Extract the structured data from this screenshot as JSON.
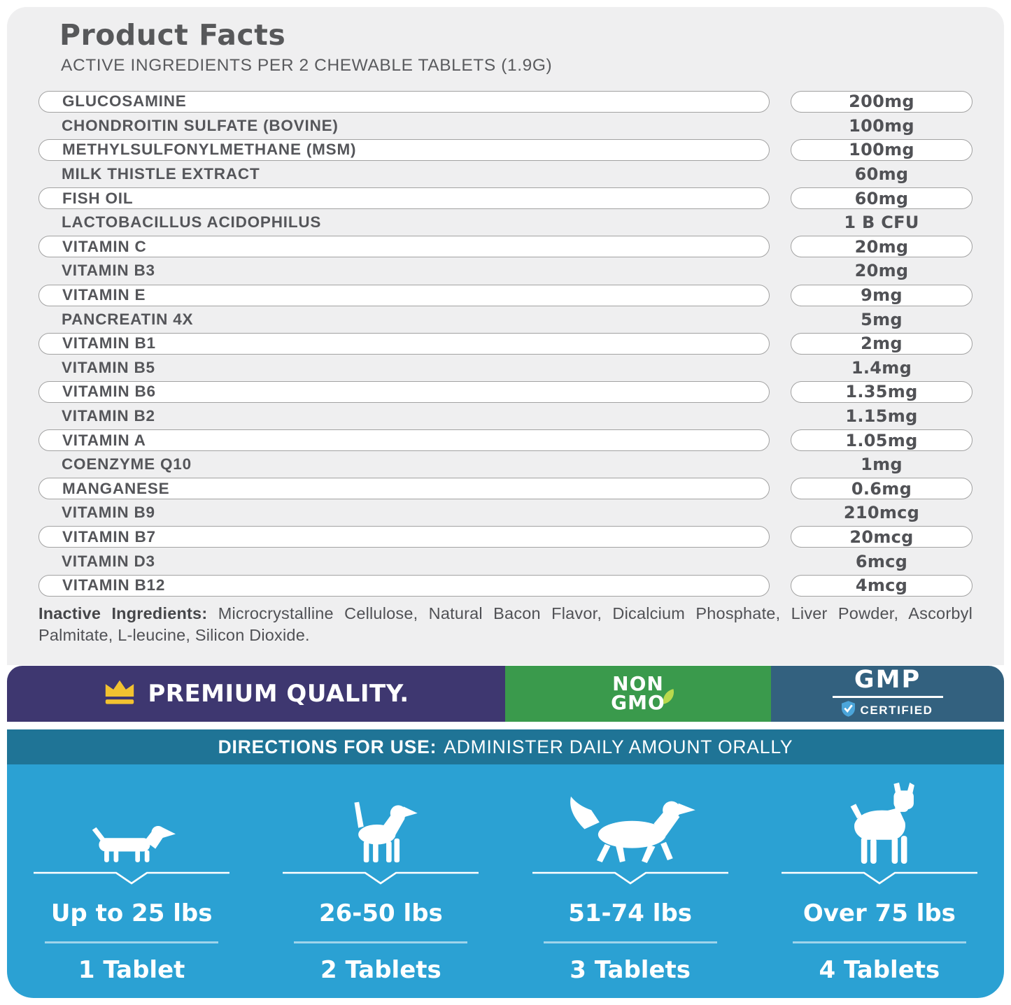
{
  "header": {
    "title": "Product Facts",
    "subtitle": "ACTIVE INGREDIENTS PER 2 CHEWABLE TABLETS (1.9G)"
  },
  "ingredients": {
    "rows": [
      {
        "name": "GLUCOSAMINE",
        "amount": "200mg"
      },
      {
        "name": "CHONDROITIN SULFATE (BOVINE)",
        "amount": "100mg"
      },
      {
        "name": "METHYLSULFONYLMETHANE (MSM)",
        "amount": "100mg"
      },
      {
        "name": "MILK THISTLE EXTRACT",
        "amount": "60mg"
      },
      {
        "name": "FISH OIL",
        "amount": "60mg"
      },
      {
        "name": "LACTOBACILLUS ACIDOPHILUS",
        "amount": "1 B CFU"
      },
      {
        "name": "VITAMIN C",
        "amount": "20mg"
      },
      {
        "name": "VITAMIN B3",
        "amount": "20mg"
      },
      {
        "name": "VITAMIN E",
        "amount": "9mg"
      },
      {
        "name": "PANCREATIN 4X",
        "amount": "5mg"
      },
      {
        "name": "VITAMIN B1",
        "amount": "2mg"
      },
      {
        "name": "VITAMIN B5",
        "amount": "1.4mg"
      },
      {
        "name": "VITAMIN B6",
        "amount": "1.35mg"
      },
      {
        "name": "VITAMIN B2",
        "amount": "1.15mg"
      },
      {
        "name": "VITAMIN A",
        "amount": "1.05mg"
      },
      {
        "name": "COENZYME Q10",
        "amount": "1mg"
      },
      {
        "name": "MANGANESE",
        "amount": "0.6mg"
      },
      {
        "name": "VITAMIN B9",
        "amount": "210mcg"
      },
      {
        "name": "VITAMIN B7",
        "amount": "20mcg"
      },
      {
        "name": "VITAMIN D3",
        "amount": "6mcg"
      },
      {
        "name": "VITAMIN B12",
        "amount": "4mcg"
      }
    ]
  },
  "inactive": {
    "label": "Inactive Ingredients:",
    "text": "Microcrystalline Cellulose, Natural Bacon Flavor, Dicalcium Phosphate, Liver Powder, Ascorbyl Palmitate, L-leucine, Silicon Dioxide."
  },
  "badges": {
    "premium": {
      "label": "PREMIUM QUALITY.",
      "icon": "crown-icon"
    },
    "non_gmo": {
      "line1": "NON",
      "line2": "GMO",
      "icon": "leaf-icon"
    },
    "gmp": {
      "title": "GMP",
      "subtitle": "CERTIFIED",
      "icon": "shield-check-icon"
    }
  },
  "directions": {
    "label": "DIRECTIONS FOR USE:",
    "text": "ADMINISTER DAILY AMOUNT ORALLY"
  },
  "dosage": {
    "columns": [
      {
        "dog": "dachshund-icon",
        "weight": "Up to 25 lbs",
        "dose": "1 Tablet"
      },
      {
        "dog": "puppy-icon",
        "weight": "26-50 lbs",
        "dose": "2 Tablets"
      },
      {
        "dog": "retriever-icon",
        "weight": "51-74 lbs",
        "dose": "3 Tablets"
      },
      {
        "dog": "boxer-icon",
        "weight": "Over 75 lbs",
        "dose": "4 Tablets"
      }
    ]
  },
  "colors": {
    "card_bg": "#efeff0",
    "pill_border": "#a2a2a2",
    "text_dark": "#55565a",
    "purple": "#3e3770",
    "gold": "#f2c230",
    "green": "#3a9a4c",
    "slate": "#33617f",
    "shield_blue": "#4ba5da",
    "leaf_green": "#b9d94d",
    "teal": "#1f7496",
    "light_blue": "#2ba1d3"
  }
}
